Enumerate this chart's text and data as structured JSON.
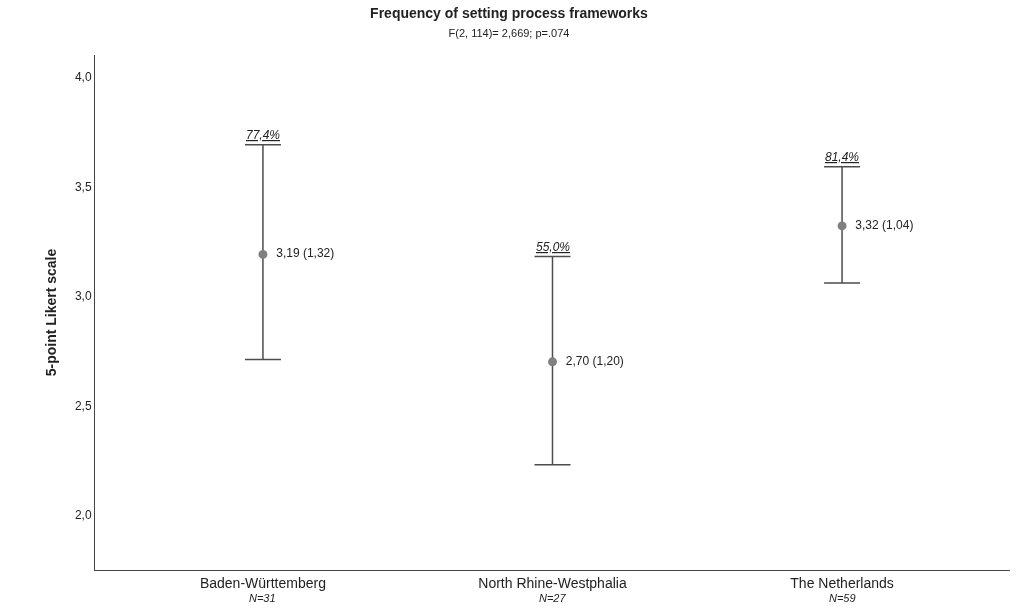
{
  "chart_data": {
    "type": "scatter",
    "title": "Frequency of setting process frameworks",
    "subtitle": "F(2, 114)= 2,669; p=.074",
    "ylabel": "5-point Likert scale",
    "categories": [
      "Baden-Württemberg",
      "North Rhine-Westphalia",
      "The Netherlands"
    ],
    "series": [
      {
        "color": "#808080",
        "values": [
          3.19,
          2.7,
          3.32
        ],
        "errors": [
          [
            2.71,
            3.69
          ],
          [
            2.23,
            3.18
          ],
          [
            3.06,
            3.59
          ]
        ],
        "value_labels": [
          "3,19 (1,32)",
          "2,70 (1,20)",
          "3,32 (1,04)"
        ]
      }
    ],
    "ylim": [
      1.75,
      4.1
    ],
    "yticks": [
      {
        "value": 2,
        "label": "2,0"
      },
      {
        "value": 2.5,
        "label": "2,5"
      },
      {
        "value": 3,
        "label": "3,0"
      },
      {
        "value": 3.5,
        "label": "3,5"
      },
      {
        "value": 4,
        "label": "4,0"
      }
    ],
    "marker": "circle",
    "annotations": [
      {
        "text": "77,4%",
        "x": "Baden-Württemberg",
        "y": 3.69
      },
      {
        "text": "55,0%",
        "x": "North Rhine-Westphalia",
        "y": 3.18
      },
      {
        "text": "81,4%",
        "x": "The Netherlands",
        "y": 3.59
      },
      "N=31",
      "N=27",
      "N=59"
    ]
  }
}
